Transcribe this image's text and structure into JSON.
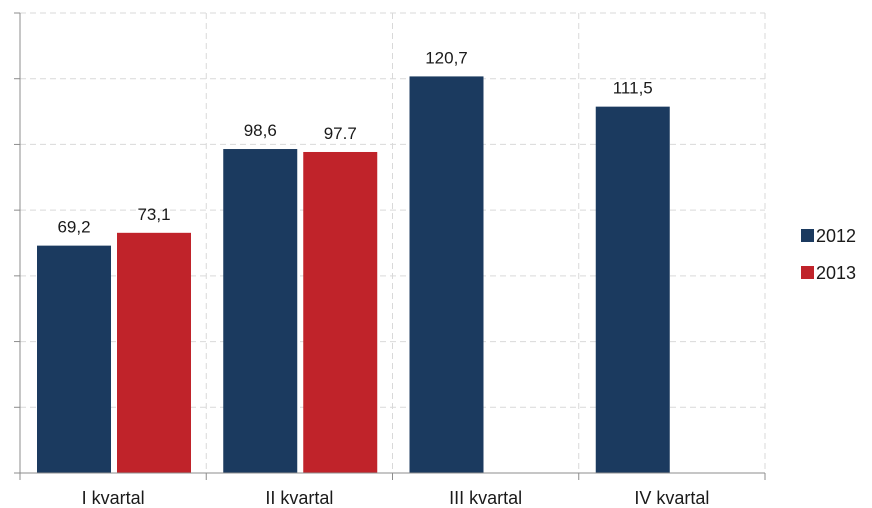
{
  "chart_data": {
    "type": "bar",
    "categories": [
      "I kvartal",
      "II kvartal",
      "III kvartal",
      "IV kvartal"
    ],
    "series": [
      {
        "name": "2012",
        "values": [
          69.2,
          98.6,
          120.7,
          111.5
        ],
        "labels": [
          "69,2",
          "98,6",
          "120,7",
          "111,5"
        ],
        "color": "#1b3a5f"
      },
      {
        "name": "2013",
        "values": [
          73.1,
          97.7,
          null,
          null
        ],
        "labels": [
          "73,1",
          "97.7",
          "",
          ""
        ],
        "color": "#c0232a"
      }
    ],
    "ylim": [
      0,
      140
    ],
    "y_gridline_step": 20,
    "y_tick_labels_shown": false,
    "grid": true,
    "legend_position": "right"
  }
}
